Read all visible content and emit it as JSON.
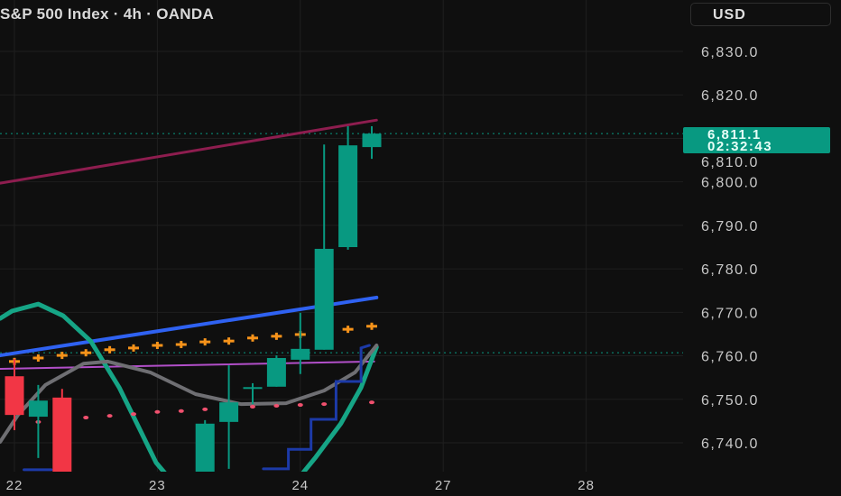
{
  "header": {
    "title": "S&P 500 Index · 4h · OANDA",
    "currency": "USD"
  },
  "last_price": {
    "value": "6,811.1",
    "countdown": "02:32:43"
  },
  "colors": {
    "background": "#0f0f0f",
    "up": "#089981",
    "down": "#f23645",
    "grid": "#1f1f1f"
  },
  "chart_data": {
    "type": "candlestick",
    "x_unit": "bar (4h)",
    "x_ticks": [
      {
        "bar": 0,
        "label": "22"
      },
      {
        "bar": 6,
        "label": "23"
      },
      {
        "bar": 12,
        "label": "24"
      },
      {
        "bar": 18,
        "label": "27"
      },
      {
        "bar": 24,
        "label": "28"
      }
    ],
    "y_ticks": [
      6740,
      6750,
      6760,
      6770,
      6780,
      6790,
      6800,
      6810,
      6820,
      6830
    ],
    "y_tick_labels": [
      "6,740.0",
      "6,750.0",
      "6,760.0",
      "6,770.0",
      "6,780.0",
      "6,790.0",
      "6,800.0",
      "6,810.0",
      "6,820.0",
      "6,830.0"
    ],
    "ylim": [
      6732,
      6836
    ],
    "grid": true,
    "candles": [
      {
        "bar": 0,
        "open": 6755.3,
        "high": 6759.3,
        "low": 6742.9,
        "close": 6746.4
      },
      {
        "bar": 1,
        "open": 6746.0,
        "high": 6753.3,
        "low": 6736.5,
        "close": 6749.7
      },
      {
        "bar": 2,
        "open": 6750.4,
        "high": 6752.4,
        "low": 6728,
        "close": 6730
      },
      {
        "bar": 8,
        "open": 6730,
        "high": 6745.2,
        "low": 6728,
        "close": 6744.4
      },
      {
        "bar": 9,
        "open": 6744.8,
        "high": 6757.8,
        "low": 6734,
        "close": 6749.3
      },
      {
        "bar": 10,
        "open": 6752.5,
        "high": 6753.7,
        "low": 6748.9,
        "close": 6752.8
      },
      {
        "bar": 11,
        "open": 6752.9,
        "high": 6760.1,
        "low": 6752.9,
        "close": 6759.5
      },
      {
        "bar": 12,
        "open": 6759.1,
        "high": 6769.9,
        "low": 6755.8,
        "close": 6761.6
      },
      {
        "bar": 13,
        "open": 6761.4,
        "high": 6808.6,
        "low": 6761.4,
        "close": 6784.6
      },
      {
        "bar": 14,
        "open": 6785.0,
        "high": 6812.8,
        "low": 6784.4,
        "close": 6808.4
      },
      {
        "bar": 15,
        "open": 6808.0,
        "high": 6812.8,
        "low": 6805.3,
        "close": 6811.1
      }
    ],
    "price_lines": [
      {
        "price": 6811.1,
        "color": "#089981"
      },
      {
        "price": 6760.7,
        "color": "#089981"
      }
    ],
    "overlays": [
      {
        "kind": "line",
        "color": "#8e1d4f",
        "width": 3,
        "points": [
          [
            -0.6,
            6799.7
          ],
          [
            15.2,
            6814.2
          ]
        ]
      },
      {
        "kind": "line",
        "color": "#2f62f2",
        "width": 4,
        "points": [
          [
            -0.6,
            6760.1
          ],
          [
            15.2,
            6773.4
          ]
        ]
      },
      {
        "kind": "line",
        "color": "#b24fc9",
        "width": 2,
        "points": [
          [
            -0.6,
            6757.0
          ],
          [
            15.1,
            6758.7
          ]
        ]
      },
      {
        "kind": "line",
        "color": "#16a586",
        "width": 5,
        "points": [
          [
            -0.6,
            6768.6
          ],
          [
            -0.1,
            6770.3
          ],
          [
            1,
            6771.9
          ],
          [
            2.05,
            6769.2
          ],
          [
            3.2,
            6763.4
          ],
          [
            4.4,
            6752.7
          ],
          [
            5.95,
            6735.4
          ],
          [
            7.1,
            6728
          ]
        ]
      },
      {
        "kind": "line",
        "color": "#16a586",
        "width": 5,
        "points": [
          [
            11.8,
            6731
          ],
          [
            12.65,
            6736.7
          ],
          [
            13.7,
            6744.4
          ],
          [
            14.55,
            6752.7
          ],
          [
            15.2,
            6762.0
          ]
        ]
      },
      {
        "kind": "line",
        "color": "#6f6f73",
        "width": 4,
        "points": [
          [
            -0.6,
            6740.2
          ],
          [
            0.15,
            6746.4
          ],
          [
            1.3,
            6753.3
          ],
          [
            2.9,
            6758.2
          ],
          [
            3.9,
            6758.7
          ],
          [
            5.7,
            6756.2
          ],
          [
            7.6,
            6751.2
          ],
          [
            9.5,
            6748.9
          ],
          [
            11.4,
            6749.1
          ],
          [
            13.0,
            6752.0
          ],
          [
            14.3,
            6756.2
          ],
          [
            15.2,
            6762.4
          ]
        ]
      },
      {
        "kind": "step",
        "color": "#1c3aa8",
        "width": 3,
        "points": [
          [
            10.45,
            6734
          ],
          [
            11.5,
            6734
          ],
          [
            11.5,
            6738.5
          ],
          [
            12.45,
            6738.5
          ],
          [
            12.45,
            6745.4
          ],
          [
            13.5,
            6745.4
          ],
          [
            13.5,
            6754.1
          ],
          [
            14.55,
            6754.1
          ],
          [
            14.55,
            6761.8
          ],
          [
            14.9,
            6762.4
          ]
        ]
      },
      {
        "kind": "step",
        "color": "#1c3aa8",
        "width": 3,
        "points": [
          [
            0.4,
            6733.8
          ],
          [
            1.55,
            6733.8
          ]
        ]
      },
      {
        "kind": "cross",
        "color": "#f7931a",
        "points": [
          [
            0,
            6758.7
          ],
          [
            1,
            6759.5
          ],
          [
            2,
            6760.1
          ],
          [
            3,
            6760.7
          ],
          [
            4,
            6761.4
          ],
          [
            5,
            6761.8
          ],
          [
            6,
            6762.4
          ],
          [
            7,
            6762.6
          ],
          [
            8,
            6763.2
          ],
          [
            9,
            6763.4
          ],
          [
            10,
            6764.1
          ],
          [
            11,
            6764.5
          ],
          [
            12,
            6764.9
          ],
          [
            14,
            6766.1
          ],
          [
            15,
            6766.8
          ]
        ]
      },
      {
        "kind": "dot",
        "color": "#f0506e",
        "points": [
          [
            1,
            6744.8
          ],
          [
            3,
            6745.8
          ],
          [
            4,
            6746.2
          ],
          [
            5,
            6746.6
          ],
          [
            6,
            6747.1
          ],
          [
            7,
            6747.3
          ],
          [
            8,
            6747.7
          ],
          [
            10,
            6748.3
          ],
          [
            11,
            6748.5
          ],
          [
            12,
            6748.7
          ],
          [
            13,
            6748.9
          ],
          [
            15,
            6749.3
          ]
        ]
      }
    ]
  }
}
